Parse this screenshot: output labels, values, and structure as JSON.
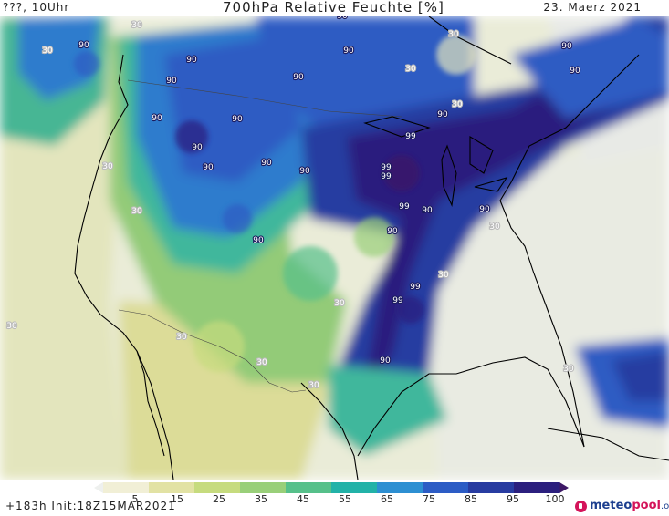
{
  "header": {
    "left": "???, 10Uhr",
    "title": "700hPa Relative Feuchte [%]",
    "date": "23. Maerz 2021"
  },
  "map": {
    "contour_labels": [
      "90",
      "30",
      "99"
    ]
  },
  "legend": {
    "ticks": [
      "5",
      "15",
      "25",
      "35",
      "45",
      "55",
      "65",
      "75",
      "85",
      "95",
      "100"
    ],
    "colors": [
      "#eef0ee",
      "#f1efd6",
      "#e2e2a4",
      "#c6db7e",
      "#99cf79",
      "#56c08a",
      "#22b2a8",
      "#2d8fd2",
      "#2c5cc5",
      "#283ca1",
      "#2b1f7e",
      "#3d1866"
    ]
  },
  "footer": {
    "run_info": "+183h Init:18Z15MAR2021",
    "logo_main": "meteo",
    "logo_accent": "pool",
    "logo_suffix": ".org"
  }
}
